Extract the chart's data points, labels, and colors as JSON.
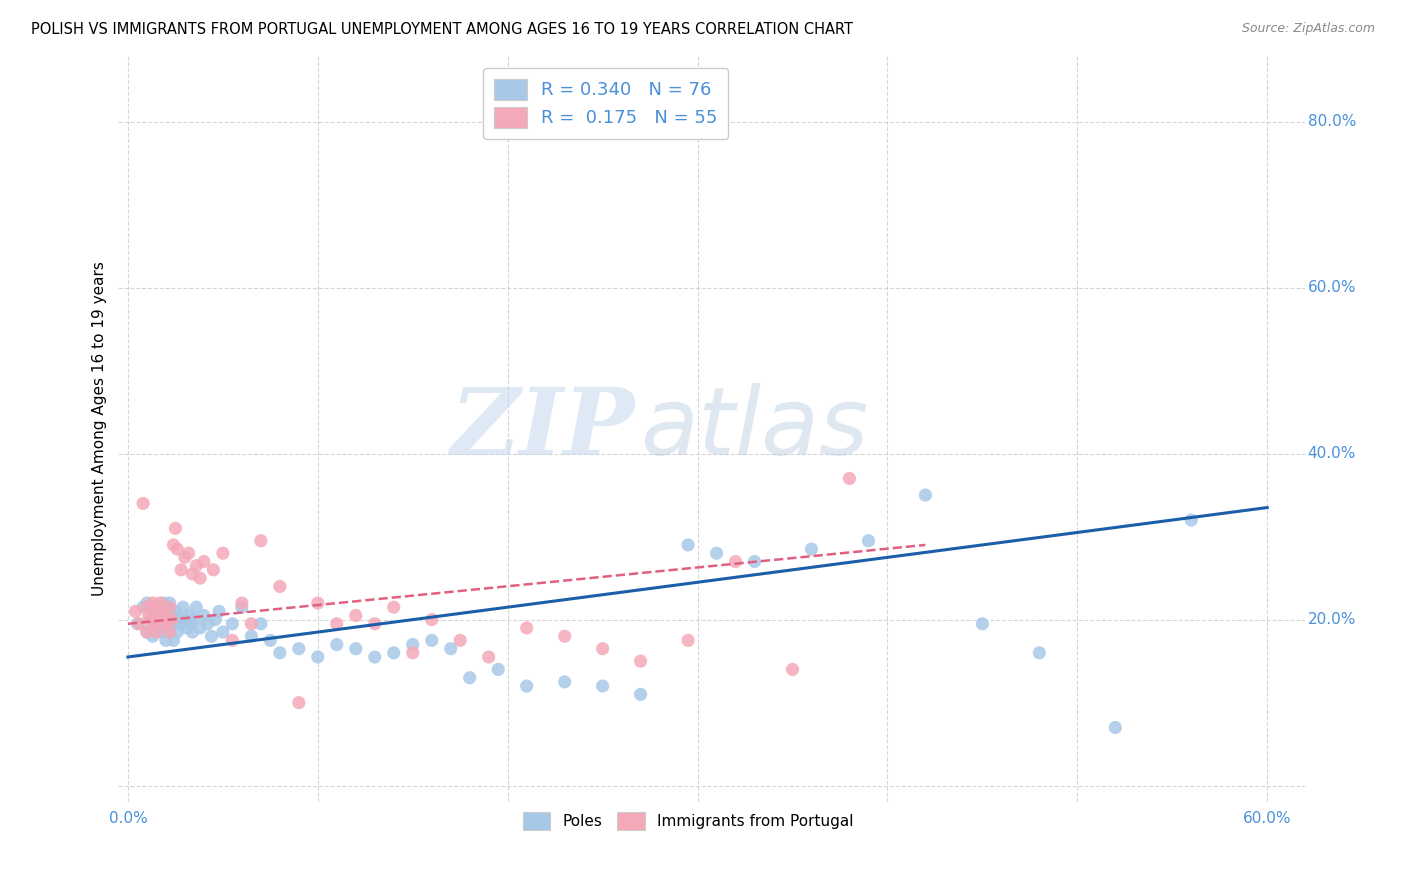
{
  "title": "POLISH VS IMMIGRANTS FROM PORTUGAL UNEMPLOYMENT AMONG AGES 16 TO 19 YEARS CORRELATION CHART",
  "source": "Source: ZipAtlas.com",
  "ylabel": "Unemployment Among Ages 16 to 19 years",
  "xlim": [
    -0.005,
    0.62
  ],
  "ylim": [
    -0.02,
    0.88
  ],
  "xticks": [
    0.0,
    0.1,
    0.2,
    0.3,
    0.4,
    0.5,
    0.6
  ],
  "yticks": [
    0.0,
    0.2,
    0.4,
    0.6,
    0.8
  ],
  "xticklabels_show": [
    "0.0%",
    "60.0%"
  ],
  "xticklabels_pos": [
    0.0,
    0.6
  ],
  "yticklabels": [
    "20.0%",
    "40.0%",
    "60.0%",
    "80.0%"
  ],
  "yticklabels_pos": [
    0.2,
    0.4,
    0.6,
    0.8
  ],
  "blue_R": 0.34,
  "blue_N": 76,
  "pink_R": 0.175,
  "pink_N": 55,
  "blue_color": "#a8c8e8",
  "pink_color": "#f4a8b8",
  "blue_line_color": "#1a5fa8",
  "pink_line_color": "#e06080",
  "grid_color": "#cccccc",
  "bg_color": "#ffffff",
  "watermark_zip": "ZIP",
  "watermark_atlas": "atlas",
  "tick_color": "#4a90d9",
  "blue_x": [
    0.005,
    0.008,
    0.01,
    0.01,
    0.012,
    0.013,
    0.014,
    0.015,
    0.015,
    0.015,
    0.016,
    0.017,
    0.018,
    0.018,
    0.019,
    0.019,
    0.02,
    0.02,
    0.021,
    0.021,
    0.022,
    0.022,
    0.022,
    0.023,
    0.024,
    0.025,
    0.025,
    0.026,
    0.027,
    0.028,
    0.029,
    0.03,
    0.031,
    0.032,
    0.033,
    0.034,
    0.035,
    0.036,
    0.038,
    0.04,
    0.042,
    0.044,
    0.046,
    0.048,
    0.05,
    0.055,
    0.06,
    0.065,
    0.07,
    0.075,
    0.08,
    0.09,
    0.1,
    0.11,
    0.12,
    0.13,
    0.14,
    0.15,
    0.16,
    0.17,
    0.18,
    0.195,
    0.21,
    0.23,
    0.25,
    0.27,
    0.295,
    0.31,
    0.33,
    0.36,
    0.39,
    0.42,
    0.45,
    0.48,
    0.52,
    0.56
  ],
  "blue_y": [
    0.195,
    0.215,
    0.185,
    0.22,
    0.2,
    0.18,
    0.21,
    0.195,
    0.205,
    0.215,
    0.19,
    0.2,
    0.185,
    0.21,
    0.2,
    0.22,
    0.195,
    0.175,
    0.205,
    0.215,
    0.185,
    0.2,
    0.22,
    0.195,
    0.175,
    0.21,
    0.2,
    0.185,
    0.205,
    0.195,
    0.215,
    0.2,
    0.19,
    0.205,
    0.195,
    0.185,
    0.2,
    0.215,
    0.19,
    0.205,
    0.195,
    0.18,
    0.2,
    0.21,
    0.185,
    0.195,
    0.215,
    0.18,
    0.195,
    0.175,
    0.16,
    0.165,
    0.155,
    0.17,
    0.165,
    0.155,
    0.16,
    0.17,
    0.175,
    0.165,
    0.13,
    0.14,
    0.12,
    0.125,
    0.12,
    0.11,
    0.29,
    0.28,
    0.27,
    0.285,
    0.295,
    0.35,
    0.195,
    0.16,
    0.07,
    0.32
  ],
  "pink_x": [
    0.004,
    0.006,
    0.008,
    0.01,
    0.01,
    0.011,
    0.012,
    0.013,
    0.014,
    0.015,
    0.015,
    0.016,
    0.017,
    0.018,
    0.019,
    0.02,
    0.021,
    0.022,
    0.022,
    0.023,
    0.024,
    0.025,
    0.026,
    0.028,
    0.03,
    0.032,
    0.034,
    0.036,
    0.038,
    0.04,
    0.045,
    0.05,
    0.055,
    0.06,
    0.065,
    0.07,
    0.08,
    0.09,
    0.1,
    0.11,
    0.12,
    0.13,
    0.14,
    0.15,
    0.16,
    0.175,
    0.19,
    0.21,
    0.23,
    0.25,
    0.27,
    0.295,
    0.32,
    0.35,
    0.38
  ],
  "pink_y": [
    0.21,
    0.195,
    0.34,
    0.215,
    0.185,
    0.205,
    0.2,
    0.22,
    0.195,
    0.21,
    0.185,
    0.2,
    0.22,
    0.215,
    0.195,
    0.205,
    0.2,
    0.185,
    0.215,
    0.2,
    0.29,
    0.31,
    0.285,
    0.26,
    0.275,
    0.28,
    0.255,
    0.265,
    0.25,
    0.27,
    0.26,
    0.28,
    0.175,
    0.22,
    0.195,
    0.295,
    0.24,
    0.1,
    0.22,
    0.195,
    0.205,
    0.195,
    0.215,
    0.16,
    0.2,
    0.175,
    0.155,
    0.19,
    0.18,
    0.165,
    0.15,
    0.175,
    0.27,
    0.14,
    0.37
  ],
  "blue_trend_x": [
    0.0,
    0.6
  ],
  "blue_trend_y": [
    0.155,
    0.335
  ],
  "pink_trend_x": [
    0.0,
    0.42
  ],
  "pink_trend_y": [
    0.195,
    0.29
  ]
}
